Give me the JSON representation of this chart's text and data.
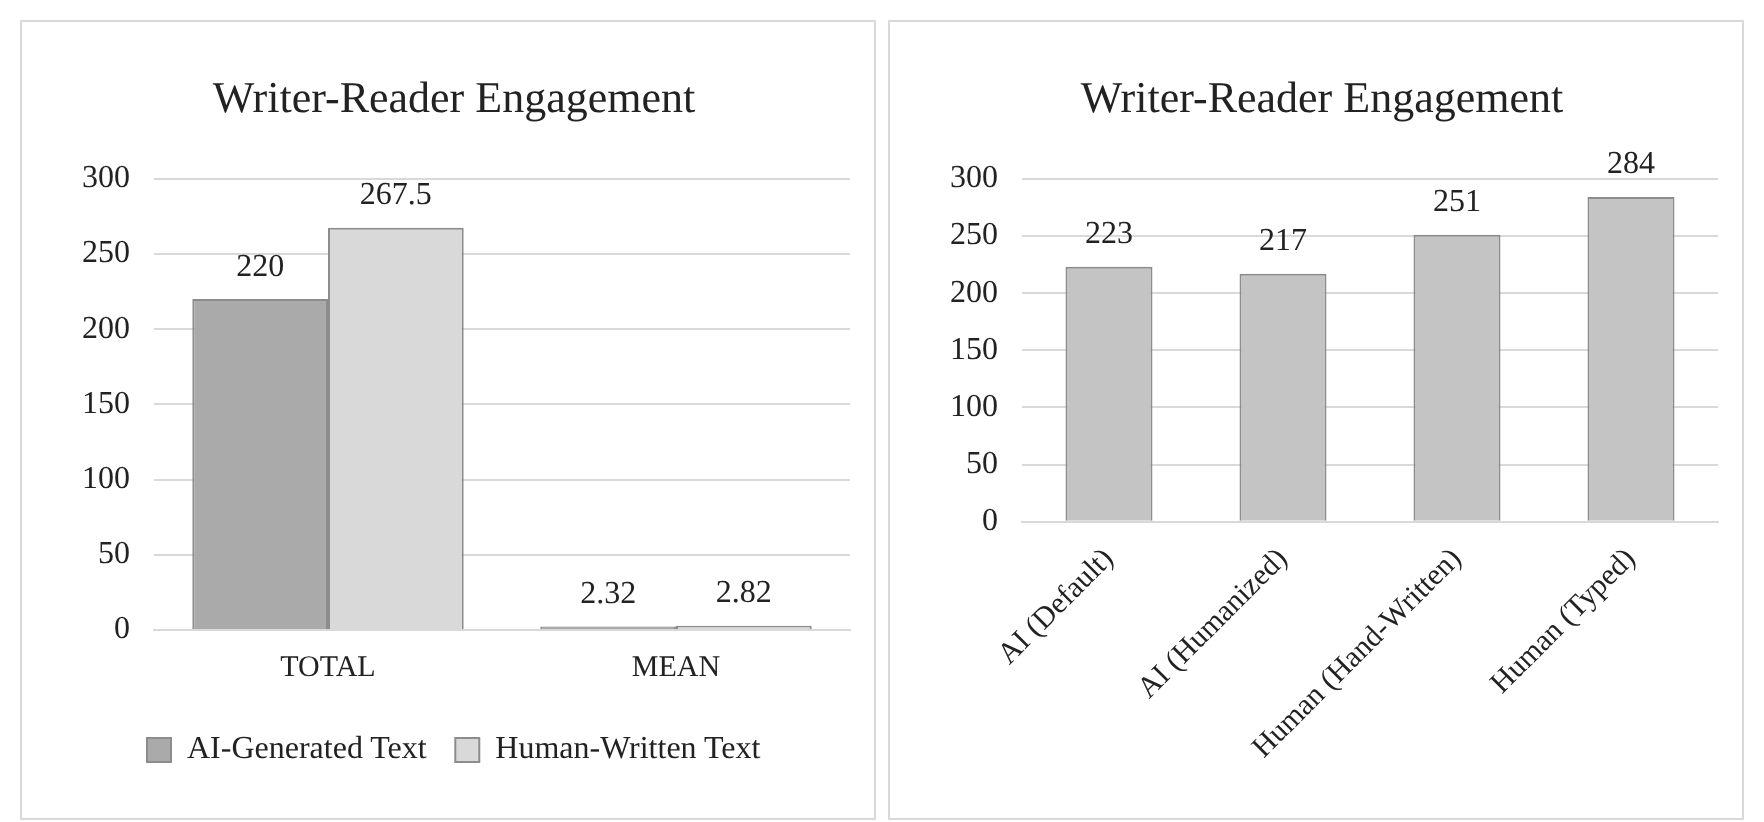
{
  "chart_data": [
    {
      "type": "bar",
      "title": "Writer-Reader Engagement",
      "categories": [
        "TOTAL",
        "MEAN"
      ],
      "series": [
        {
          "name": "AI-Generated Text",
          "color": "#aaaaaa",
          "values": [
            220,
            2.32
          ]
        },
        {
          "name": "Human-Written Text",
          "color": "#d9d9d9",
          "values": [
            267.5,
            2.82
          ]
        }
      ],
      "ylim": [
        0,
        300
      ],
      "yticks": [
        0,
        50,
        100,
        150,
        200,
        250,
        300
      ],
      "grid": "y",
      "legend": "bottom",
      "data_labels": true
    },
    {
      "type": "bar",
      "title": "Writer-Reader Engagement",
      "categories": [
        "AI (Default)",
        "AI (Humanized)",
        "Human (Hand-Written)",
        "Human (Typed)"
      ],
      "series": [
        {
          "color": "#c4c4c4",
          "values": [
            223,
            217,
            251,
            284
          ]
        }
      ],
      "ylim": [
        0,
        300
      ],
      "yticks": [
        0,
        50,
        100,
        150,
        200,
        250,
        300
      ],
      "grid": "y",
      "data_labels": true
    }
  ]
}
